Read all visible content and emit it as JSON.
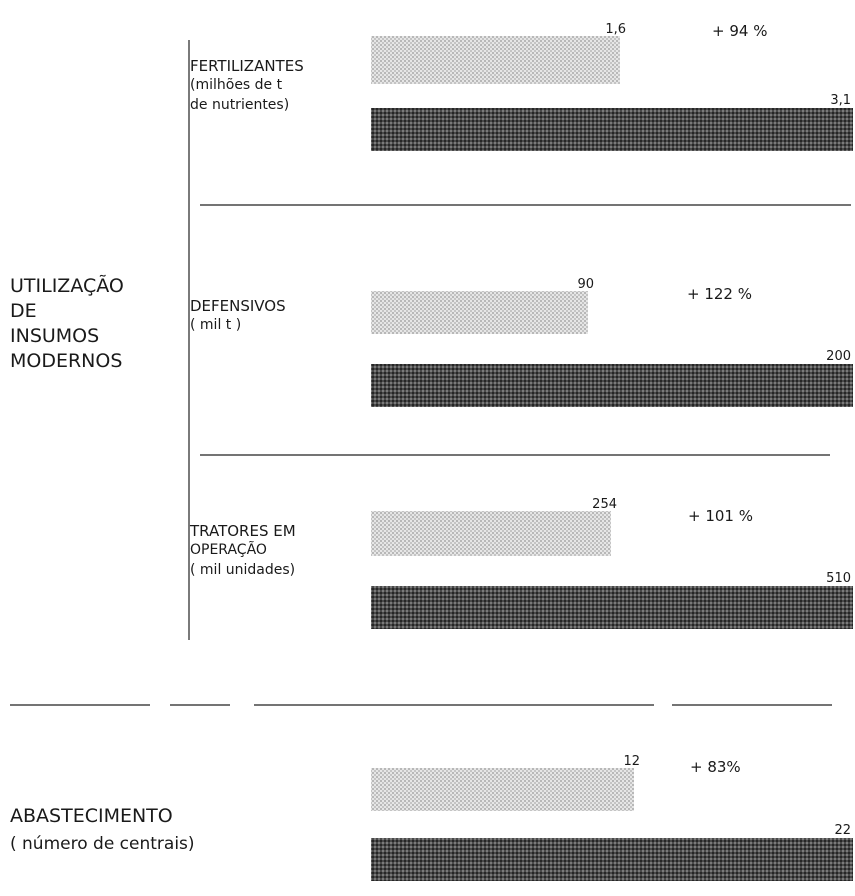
{
  "colors": {
    "light_bar": "#c8c8c8",
    "dark_bar": "#3a3a3a",
    "text": "#1a1a1a",
    "rules": "#222222"
  },
  "groups": [
    {
      "lines": [
        "UTILIZAÇÃO",
        "DE",
        "INSUMOS",
        "MODERNOS"
      ]
    },
    {
      "lines": [
        "ABASTECIMENTO",
        "( número de centrais)"
      ]
    }
  ],
  "chart_data": {
    "type": "bar",
    "orientation": "horizontal",
    "grid": false,
    "legend": "none",
    "panels": [
      {
        "group": 0,
        "label_lines": [
          "FERTILIZANTES",
          "(milhões de t",
          "de nutrientes)"
        ],
        "before": 1.6,
        "before_label": "1,6",
        "after": 3.1,
        "after_label": "3,1",
        "change_label": "+ 94 %"
      },
      {
        "group": 0,
        "label_lines": [
          "DEFENSIVOS",
          "( mil t )"
        ],
        "before": 90,
        "before_label": "90",
        "after": 200,
        "after_label": "200",
        "change_label": "+ 122 %"
      },
      {
        "group": 0,
        "label_lines": [
          "TRATORES EM",
          "OPERAÇÃO",
          "( mil unidades)"
        ],
        "before": 254,
        "before_label": "254",
        "after": 510,
        "after_label": "510",
        "change_label": "+ 101 %"
      },
      {
        "group": 1,
        "label_lines": [],
        "before": 12,
        "before_label": "12",
        "after": 22,
        "after_label": "22",
        "change_label": "+ 83%"
      }
    ]
  }
}
